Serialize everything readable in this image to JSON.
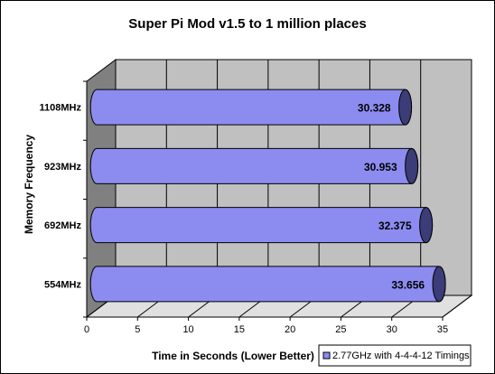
{
  "chart_data": {
    "type": "bar",
    "orientation": "horizontal",
    "style": "3d-cylinder",
    "title": "Super Pi Mod v1.5 to 1 million places",
    "xlabel": "Time in Seconds (Lower Better)",
    "ylabel": "Memory Frequency",
    "categories": [
      "554MHz",
      "692MHz",
      "923MHz",
      "1108MHz"
    ],
    "series": [
      {
        "name": "2.77GHz with 4-4-4-12 Timings",
        "values": [
          33.656,
          32.375,
          30.953,
          30.328
        ],
        "labels": [
          "33.656",
          "32.375",
          "30.953",
          "30.328"
        ],
        "color": "#8c8cf0"
      }
    ],
    "xlim": [
      0,
      35
    ],
    "xticks": [
      "0",
      "5",
      "10",
      "15",
      "20",
      "25",
      "30",
      "35"
    ],
    "grid": true,
    "legend_position": "bottom-right",
    "colors": {
      "plot_back_wall": "#c0c0c0",
      "plot_side_wall": "#808080",
      "plot_floor": "#e0e0e0",
      "bar_fill": "#8c8cf0",
      "bar_end": "#3c3c78"
    }
  }
}
